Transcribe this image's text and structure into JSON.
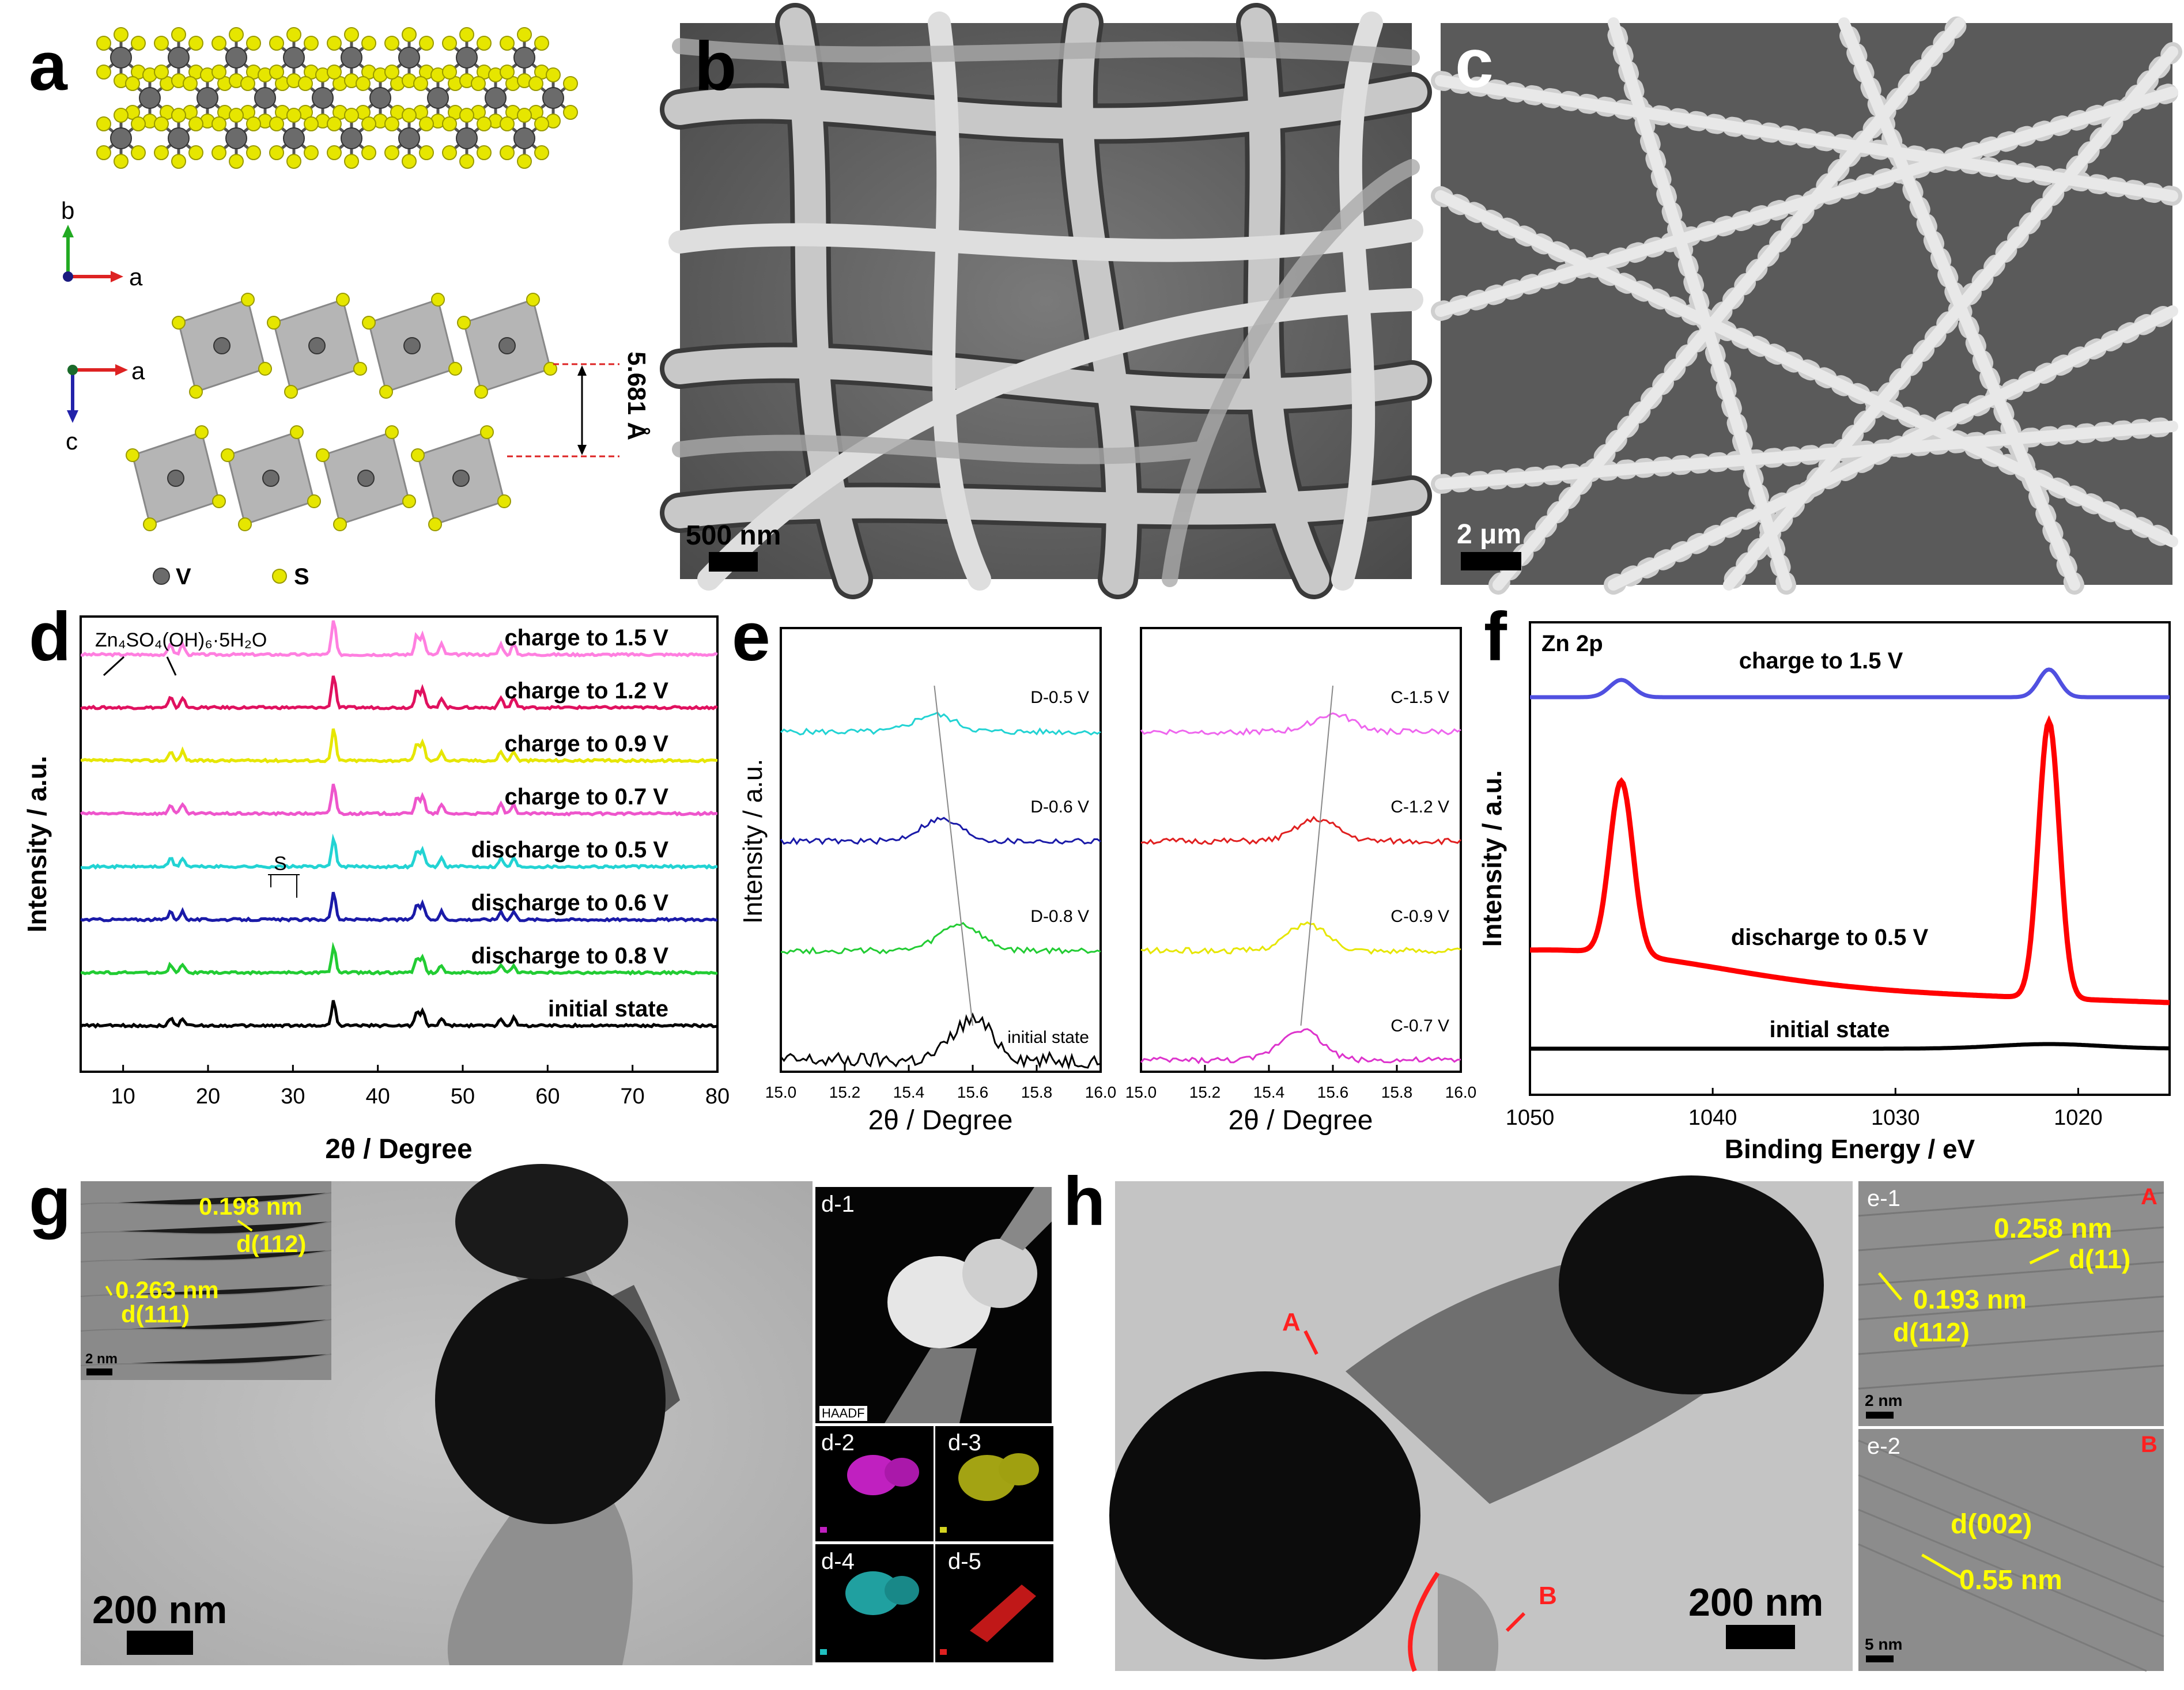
{
  "panels": {
    "a": {
      "label": "a",
      "axes_top": {
        "b": "b",
        "a": "a"
      },
      "axes_bottom": {
        "a": "a",
        "c": "c"
      },
      "spacing": "5.681 Å",
      "legend": [
        {
          "symbol": "V",
          "color": "#6b6b6b"
        },
        {
          "symbol": "S",
          "color": "#e6e600"
        }
      ]
    },
    "b": {
      "label": "b",
      "scalebar": "500 nm"
    },
    "c": {
      "label": "c",
      "scalebar": "2 μm"
    },
    "d": {
      "label": "d",
      "annotation_phase": "Zn₄SO₄(OH)₆·5H₂O",
      "annotation_s": "S"
    },
    "e": {
      "label": "e"
    },
    "f": {
      "label": "f"
    },
    "g": {
      "label": "g",
      "scalebar": "200 nm",
      "inset_scalebar": "2 nm",
      "lattice": [
        {
          "spacing": "0.198 nm",
          "plane": "d(112)"
        },
        {
          "spacing": "0.263 nm",
          "plane": "d(111)"
        }
      ],
      "maps": [
        "d-1",
        "d-2",
        "d-3",
        "d-4",
        "d-5"
      ],
      "haadf": "HAADF"
    },
    "h": {
      "label": "h",
      "scalebar": "200 nm",
      "markers": [
        "A",
        "B"
      ],
      "e1": {
        "label": "e-1",
        "corner": "A",
        "s1": "0.258 nm",
        "p1": "d(11)",
        "s2": "0.193 nm",
        "p2": "d(112)",
        "scalebar": "2 nm"
      },
      "e2": {
        "label": "e-2",
        "corner": "B",
        "plane": "d(002)",
        "spacing": "0.55 nm",
        "scalebar": "5 nm"
      }
    }
  },
  "chart_data": [
    {
      "type": "line",
      "panel": "d",
      "xlabel": "2θ / Degree",
      "ylabel": "Intensity / a.u.",
      "xlim": [
        5,
        80
      ],
      "xticks": [
        10,
        20,
        30,
        40,
        50,
        60,
        70,
        80
      ],
      "series": [
        {
          "name": "charge to 1.5 V",
          "color": "#ff7fe0"
        },
        {
          "name": "charge to 1.2 V",
          "color": "#e0115f"
        },
        {
          "name": "charge to 0.9 V",
          "color": "#e6e600"
        },
        {
          "name": "charge to 0.7 V",
          "color": "#ee55cc"
        },
        {
          "name": "discharge to 0.5 V",
          "color": "#22d3d3"
        },
        {
          "name": "discharge to 0.6 V",
          "color": "#1a1aa8"
        },
        {
          "name": "discharge to 0.8 V",
          "color": "#22cc33"
        },
        {
          "name": "initial state",
          "color": "#000000"
        }
      ],
      "peaks": [
        15.6,
        17.0,
        34.8,
        44.6,
        45.3,
        47.5,
        54.5,
        56.0
      ]
    },
    {
      "type": "line",
      "panel": "e-left",
      "xlabel": "2θ / Degree",
      "ylabel": "Intensity / a.u.",
      "xlim": [
        15.0,
        16.0
      ],
      "xticks": [
        15.0,
        15.2,
        15.4,
        15.6,
        15.8,
        16.0
      ],
      "series": [
        {
          "name": "D-0.5 V",
          "color": "#22d3d3",
          "peak": 15.48
        },
        {
          "name": "D-0.6 V",
          "color": "#1a1aa8",
          "peak": 15.5
        },
        {
          "name": "D-0.8 V",
          "color": "#22cc33",
          "peak": 15.56
        },
        {
          "name": "initial state",
          "color": "#000000",
          "peak": 15.6
        }
      ]
    },
    {
      "type": "line",
      "panel": "e-right",
      "xlabel": "2θ / Degree",
      "xlim": [
        15.0,
        16.0
      ],
      "xticks": [
        15.0,
        15.2,
        15.4,
        15.6,
        15.8,
        16.0
      ],
      "series": [
        {
          "name": "C-1.5 V",
          "color": "#ee66ee",
          "peak": 15.6
        },
        {
          "name": "C-1.2 V",
          "color": "#e02020",
          "peak": 15.55
        },
        {
          "name": "C-0.9 V",
          "color": "#e6e600",
          "peak": 15.52
        },
        {
          "name": "C-0.7 V",
          "color": "#dd33cc",
          "peak": 15.5
        }
      ]
    },
    {
      "type": "line",
      "panel": "f",
      "title": "Zn 2p",
      "xlabel": "Binding Energy / eV",
      "ylabel": "Intensity / a.u.",
      "xlim": [
        1050,
        1015
      ],
      "xticks": [
        1050,
        1040,
        1030,
        1020
      ],
      "series": [
        {
          "name": "charge to 1.5 V",
          "color": "#5050e0",
          "peaks": [
            1045,
            1021.6
          ],
          "height": 0.1
        },
        {
          "name": "discharge to 0.5 V",
          "color": "#ff0000",
          "peaks": [
            1045,
            1021.6
          ],
          "height": 1.0
        },
        {
          "name": "initial state",
          "color": "#000000",
          "peaks": [],
          "height": 0
        }
      ]
    }
  ]
}
